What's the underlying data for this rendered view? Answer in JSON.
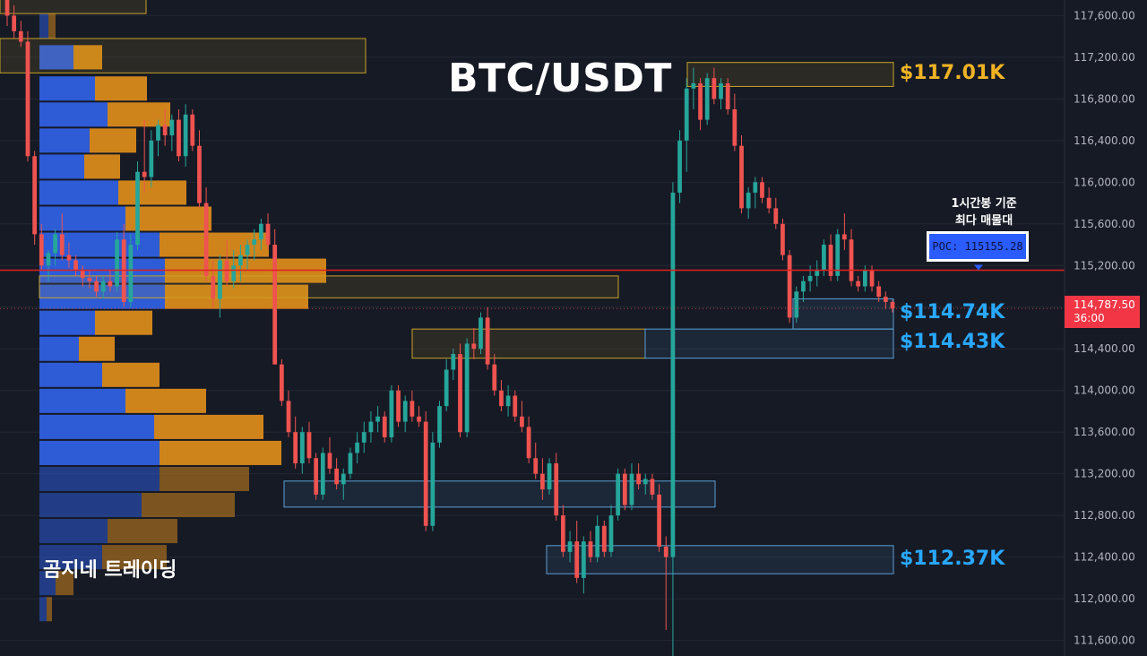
{
  "title": "BTC/USDT",
  "watermark": "곰지네 트레이딩",
  "poc": {
    "note_line1": "1시간봉 기준",
    "note_line2": "최다 매물대",
    "label": "POC: 115155.28",
    "value": 115155.28
  },
  "current_price": {
    "label": "114,787.50",
    "countdown": "36:00",
    "value": 114787.5
  },
  "levels": [
    {
      "label": "$117.01K",
      "color": "#f0b323",
      "lo": 116920,
      "hi": 117150
    },
    {
      "label": "$114.74K",
      "color": "#29a8ff",
      "lo": 114590,
      "hi": 114880
    },
    {
      "label": "$114.43K",
      "color": "#29a8ff",
      "lo": 114310,
      "hi": 114590
    },
    {
      "label": "$112.37K",
      "color": "#29a8ff",
      "lo": 112240,
      "hi": 112510
    }
  ],
  "colors": {
    "background": "#161a25",
    "up": "#26a69a",
    "down": "#ef5350",
    "poc_line": "#e0201e",
    "profile_buy": "#2e5bd6",
    "profile_sell": "#d98a1a"
  },
  "chart_data": {
    "type": "candlestick",
    "title": "BTC/USDT",
    "timeframe_note": "1시간봉 기준",
    "ylim": [
      111450,
      117750
    ],
    "y_ticks": [
      "111,600.00",
      "112,000.00",
      "112,400.00",
      "112,800.00",
      "113,200.00",
      "113,600.00",
      "114,000.00",
      "114,400.00",
      "114,800.00",
      "115,200.00",
      "115,600.00",
      "116,000.00",
      "116,400.00",
      "116,800.00",
      "117,200.00",
      "117,600.00"
    ],
    "y_tick_values": [
      111600,
      112000,
      112400,
      112800,
      113200,
      113600,
      114000,
      114400,
      114800,
      115200,
      115600,
      116000,
      116400,
      116800,
      117200,
      117600
    ],
    "poc": 115155.28,
    "last_price": 114787.5,
    "volume_profile": [
      {
        "price": 117500,
        "buy": 10,
        "sell": 8
      },
      {
        "price": 117200,
        "buy": 38,
        "sell": 32
      },
      {
        "price": 116900,
        "buy": 62,
        "sell": 58
      },
      {
        "price": 116650,
        "buy": 76,
        "sell": 70
      },
      {
        "price": 116400,
        "buy": 56,
        "sell": 52
      },
      {
        "price": 116150,
        "buy": 50,
        "sell": 40
      },
      {
        "price": 115900,
        "buy": 88,
        "sell": 76
      },
      {
        "price": 115650,
        "buy": 96,
        "sell": 96
      },
      {
        "price": 115400,
        "buy": 134,
        "sell": 122
      },
      {
        "price": 115150,
        "buy": 140,
        "sell": 180
      },
      {
        "price": 114900,
        "buy": 140,
        "sell": 160
      },
      {
        "price": 114650,
        "buy": 62,
        "sell": 64
      },
      {
        "price": 114400,
        "buy": 44,
        "sell": 40
      },
      {
        "price": 114150,
        "buy": 70,
        "sell": 64
      },
      {
        "price": 113900,
        "buy": 96,
        "sell": 90
      },
      {
        "price": 113650,
        "buy": 128,
        "sell": 122
      },
      {
        "price": 113400,
        "buy": 134,
        "sell": 136
      },
      {
        "price": 113150,
        "buy": 134,
        "sell": 100
      },
      {
        "price": 112900,
        "buy": 114,
        "sell": 104
      },
      {
        "price": 112650,
        "buy": 76,
        "sell": 78
      },
      {
        "price": 112400,
        "buy": 70,
        "sell": 72
      },
      {
        "price": 112150,
        "buy": 18,
        "sell": 20
      },
      {
        "price": 111900,
        "buy": 8,
        "sell": 6
      }
    ],
    "candles": [
      [
        117800,
        117850,
        117500,
        117600
      ],
      [
        117600,
        117700,
        117380,
        117450
      ],
      [
        117450,
        117550,
        117300,
        117350
      ],
      [
        117350,
        117450,
        116200,
        116250
      ],
      [
        116250,
        116300,
        115400,
        115500
      ],
      [
        115500,
        115600,
        115150,
        115200
      ],
      [
        115200,
        115350,
        115050,
        115320
      ],
      [
        115320,
        115550,
        115200,
        115500
      ],
      [
        115500,
        115700,
        115250,
        115300
      ],
      [
        115300,
        115420,
        115180,
        115250
      ],
      [
        115250,
        115300,
        115100,
        115150
      ],
      [
        115150,
        115200,
        115000,
        115080
      ],
      [
        115080,
        115150,
        114980,
        115050
      ],
      [
        115050,
        115100,
        114900,
        114950
      ],
      [
        114950,
        115100,
        114880,
        115050
      ],
      [
        115050,
        115150,
        114950,
        115000
      ],
      [
        115000,
        115520,
        114950,
        115450
      ],
      [
        115450,
        115600,
        114800,
        114850
      ],
      [
        114850,
        115500,
        114800,
        115400
      ],
      [
        115400,
        116200,
        115350,
        116100
      ],
      [
        116100,
        116600,
        115900,
        116050
      ],
      [
        116050,
        116500,
        115950,
        116400
      ],
      [
        116400,
        116600,
        116250,
        116550
      ],
      [
        116550,
        116700,
        116350,
        116450
      ],
      [
        116450,
        116650,
        116300,
        116600
      ],
      [
        116600,
        116700,
        116200,
        116250
      ],
      [
        116250,
        116750,
        116150,
        116650
      ],
      [
        116650,
        116700,
        116300,
        116350
      ],
      [
        116350,
        116500,
        115750,
        115800
      ],
      [
        115800,
        115950,
        115050,
        115100
      ],
      [
        115100,
        115250,
        114800,
        114880
      ],
      [
        114880,
        115300,
        114700,
        115250
      ],
      [
        115250,
        115450,
        115000,
        115050
      ],
      [
        115050,
        115350,
        114980,
        115200
      ],
      [
        115200,
        115400,
        115050,
        115300
      ],
      [
        115300,
        115450,
        115150,
        115400
      ],
      [
        115400,
        115550,
        115250,
        115450
      ],
      [
        115450,
        115650,
        115350,
        115600
      ],
      [
        115600,
        115700,
        115350,
        115400
      ],
      [
        115400,
        115550,
        114250,
        114250
      ],
      [
        114250,
        114300,
        113850,
        113900
      ],
      [
        113900,
        114000,
        113550,
        113600
      ],
      [
        113600,
        113750,
        113250,
        113300
      ],
      [
        113300,
        113650,
        113200,
        113600
      ],
      [
        113600,
        113700,
        113300,
        113350
      ],
      [
        113350,
        113400,
        112950,
        113000
      ],
      [
        113000,
        113450,
        112950,
        113400
      ],
      [
        113400,
        113550,
        113200,
        113250
      ],
      [
        113250,
        113350,
        113050,
        113100
      ],
      [
        113100,
        113250,
        112950,
        113200
      ],
      [
        113200,
        113450,
        113150,
        113400
      ],
      [
        113400,
        113600,
        113300,
        113500
      ],
      [
        113500,
        113700,
        113400,
        113600
      ],
      [
        113600,
        113800,
        113500,
        113700
      ],
      [
        113700,
        113850,
        113600,
        113750
      ],
      [
        113750,
        113800,
        113500,
        113550
      ],
      [
        113550,
        114050,
        113500,
        114000
      ],
      [
        114000,
        114050,
        113650,
        113700
      ],
      [
        113700,
        113950,
        113600,
        113900
      ],
      [
        113900,
        114000,
        113700,
        113750
      ],
      [
        113750,
        113850,
        113650,
        113700
      ],
      [
        113700,
        113800,
        112650,
        112700
      ],
      [
        112700,
        113600,
        112650,
        113500
      ],
      [
        113500,
        113900,
        113450,
        113850
      ],
      [
        113850,
        114300,
        113800,
        114200
      ],
      [
        114200,
        114400,
        114100,
        114350
      ],
      [
        114350,
        114450,
        113550,
        113600
      ],
      [
        113600,
        114500,
        113550,
        114450
      ],
      [
        114450,
        114600,
        114300,
        114400
      ],
      [
        114400,
        114750,
        114350,
        114700
      ],
      [
        114700,
        114800,
        114200,
        114250
      ],
      [
        114250,
        114350,
        113950,
        114000
      ],
      [
        114000,
        114100,
        113800,
        113850
      ],
      [
        113850,
        114050,
        113750,
        113950
      ],
      [
        113950,
        114000,
        113700,
        113750
      ],
      [
        113750,
        113900,
        113600,
        113650
      ],
      [
        113650,
        113750,
        113300,
        113350
      ],
      [
        113350,
        113500,
        113150,
        113200
      ],
      [
        113200,
        113350,
        112950,
        113050
      ],
      [
        113050,
        113350,
        113000,
        113300
      ],
      [
        113300,
        113400,
        112750,
        112800
      ],
      [
        112800,
        112900,
        112400,
        112450
      ],
      [
        112450,
        112650,
        112350,
        112550
      ],
      [
        112550,
        112750,
        112150,
        112200
      ],
      [
        112200,
        112600,
        112050,
        112550
      ],
      [
        112550,
        112650,
        112350,
        112400
      ],
      [
        112400,
        112800,
        112350,
        112700
      ],
      [
        112700,
        112750,
        112400,
        112450
      ],
      [
        112450,
        112900,
        112400,
        112800
      ],
      [
        112800,
        113250,
        112750,
        113200
      ],
      [
        113200,
        113250,
        112850,
        112900
      ],
      [
        112900,
        113300,
        112850,
        113200
      ],
      [
        113200,
        113300,
        113050,
        113100
      ],
      [
        113100,
        113200,
        113000,
        113150
      ],
      [
        113150,
        113200,
        112950,
        113000
      ],
      [
        113000,
        113100,
        112450,
        112500
      ],
      [
        112500,
        112600,
        111700,
        112400
      ],
      [
        112400,
        116000,
        111400,
        115900
      ],
      [
        115900,
        116500,
        115800,
        116400
      ],
      [
        116400,
        117000,
        116100,
        116900
      ],
      [
        116900,
        117100,
        116700,
        116950
      ],
      [
        116950,
        117000,
        116500,
        116600
      ],
      [
        116600,
        117050,
        116550,
        117000
      ],
      [
        117000,
        117100,
        116750,
        116800
      ],
      [
        116800,
        117000,
        116700,
        116950
      ],
      [
        116950,
        117000,
        116650,
        116700
      ],
      [
        116700,
        116850,
        116300,
        116350
      ],
      [
        116350,
        116450,
        115700,
        115750
      ],
      [
        115750,
        115950,
        115650,
        115900
      ],
      [
        115900,
        116050,
        115750,
        116000
      ],
      [
        116000,
        116050,
        115800,
        115850
      ],
      [
        115850,
        115950,
        115700,
        115750
      ],
      [
        115750,
        115850,
        115550,
        115600
      ],
      [
        115600,
        115650,
        115250,
        115300
      ],
      [
        115300,
        115350,
        114650,
        114700
      ],
      [
        114700,
        115000,
        114650,
        114950
      ],
      [
        114950,
        115100,
        114850,
        115050
      ],
      [
        115050,
        115200,
        114950,
        115100
      ],
      [
        115100,
        115250,
        115000,
        115150
      ],
      [
        115150,
        115450,
        115100,
        115400
      ],
      [
        115400,
        115500,
        115050,
        115100
      ],
      [
        115100,
        115550,
        115050,
        115500
      ],
      [
        115500,
        115700,
        115350,
        115450
      ],
      [
        115450,
        115550,
        115000,
        115050
      ],
      [
        115050,
        115100,
        114950,
        115000
      ],
      [
        115000,
        115200,
        114950,
        115150
      ],
      [
        115150,
        115200,
        114950,
        115000
      ],
      [
        115000,
        115050,
        114850,
        114900
      ],
      [
        114900,
        114950,
        114780,
        114850
      ],
      [
        114850,
        114870,
        114750,
        114787
      ]
    ]
  }
}
